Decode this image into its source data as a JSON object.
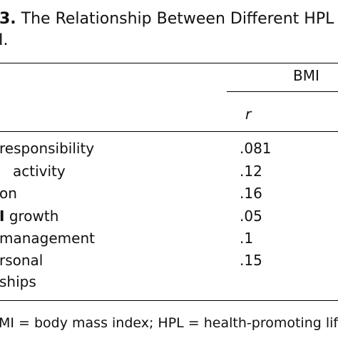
{
  "caption": {
    "number": "3.",
    "title_line1": "The Relationship Between Different HPL Va",
    "title_line2": "I."
  },
  "table": {
    "column_group_header": "BMI",
    "column_subheader": "r",
    "rows": [
      {
        "label_line1": "responsibility",
        "label_line2": "",
        "value": ".081"
      },
      {
        "label_line1": "activity",
        "label_line2": "",
        "value": ".12"
      },
      {
        "label_line1": "on",
        "label_line2": "",
        "value": ".16"
      },
      {
        "label_prefix": "I",
        "label_line1": "growth",
        "label_line2": "",
        "value": ".05"
      },
      {
        "label_line1": "management",
        "label_line2": "",
        "value": ".1"
      },
      {
        "label_line1": "rsonal",
        "label_line2": "ships",
        "value": ".15"
      }
    ]
  },
  "footnote": "MI = body mass index; HPL = health-promoting lifest"
}
